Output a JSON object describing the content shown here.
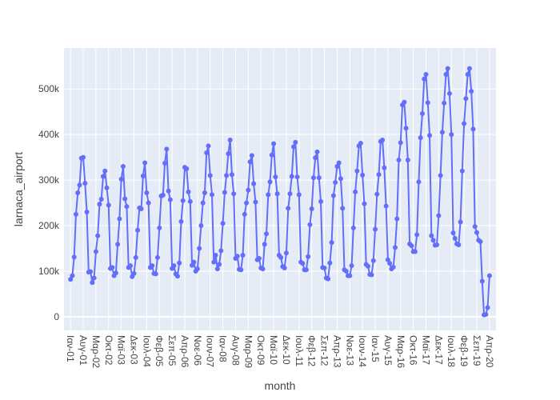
{
  "chart_data": {
    "type": "line",
    "mode": "lines+markers",
    "xlabel": "month",
    "ylabel": "larnaca_airport",
    "ylim": [
      -30000,
      590000
    ],
    "yticks": [
      0,
      100000,
      200000,
      300000,
      400000,
      500000
    ],
    "ytick_labels": [
      "0",
      "100k",
      "200k",
      "300k",
      "400k",
      "500k"
    ],
    "xtick_labels": [
      "Ιαν-01",
      "Αυγ-01",
      "Μαρ-02",
      "Οκτ-02",
      "Μαϊ-03",
      "Δεκ-03",
      "Ιουλ-04",
      "Φεβ-05",
      "Σεπ-05",
      "Απρ-06",
      "Νοε-06",
      "Ιουν-07",
      "Ιαν-08",
      "Αυγ-08",
      "Μαρ-09",
      "Οκτ-09",
      "Μαϊ-10",
      "Δεκ-10",
      "Ιουλ-11",
      "Φεβ-12",
      "Σεπ-12",
      "Απρ-13",
      "Νοε-13",
      "Ιουν-14",
      "Ιαν-15",
      "Αυγ-15",
      "Μαρ-16",
      "Οκτ-16",
      "Μαϊ-17",
      "Δεκ-17",
      "Ιουλ-18",
      "Φεβ-19",
      "Σεπ-19",
      "Απρ-20"
    ],
    "xtick_step_months": 7,
    "grid": true,
    "line_color": "#636efa",
    "plot_bg": "#e5ecf6",
    "series": [
      {
        "start": "2001-01",
        "values": [
          82000,
          90000,
          131000,
          225000,
          272000,
          289000,
          348000,
          350000,
          293000,
          230000,
          98000,
          99000,
          75000,
          85000,
          143000,
          178000,
          247000,
          258000,
          308000,
          320000,
          283000,
          245000,
          106000,
          108000,
          90000,
          96000,
          159000,
          215000,
          302000,
          330000,
          259000,
          242000,
          108000,
          112000,
          88000,
          95000,
          130000,
          190000,
          239000,
          237000,
          309000,
          338000,
          272000,
          250000,
          108000,
          112000,
          95000,
          94000,
          130000,
          195000,
          265000,
          267000,
          337000,
          368000,
          276000,
          257000,
          106000,
          112000,
          94000,
          89000,
          118000,
          209000,
          255000,
          328000,
          325000,
          274000,
          253000,
          113000,
          120000,
          100000,
          105000,
          150000,
          200000,
          250000,
          272000,
          360000,
          375000,
          310000,
          268000,
          120000,
          135000,
          105000,
          115000,
          145000,
          205000,
          273000,
          310000,
          358000,
          388000,
          312000,
          270000,
          128000,
          133000,
          104000,
          103000,
          135000,
          225000,
          250000,
          278000,
          340000,
          354000,
          292000,
          252000,
          125000,
          128000,
          107000,
          105000,
          159000,
          182000,
          268000,
          296000,
          355000,
          380000,
          307000,
          270000,
          135000,
          130000,
          110000,
          107000,
          140000,
          238000,
          270000,
          308000,
          373000,
          383000,
          307000,
          268000,
          120000,
          117000,
          103000,
          103000,
          132000,
          202000,
          237000,
          305000,
          349000,
          362000,
          305000,
          253000,
          108000,
          107000,
          85000,
          83000,
          118000,
          163000,
          266000,
          295000,
          330000,
          338000,
          303000,
          238000,
          103000,
          100000,
          90000,
          90000,
          112000,
          195000,
          274000,
          320000,
          375000,
          381000,
          311000,
          248000,
          115000,
          111000,
          93000,
          92000,
          123000,
          192000,
          269000,
          312000,
          385000,
          388000,
          327000,
          243000,
          125000,
          117000,
          105000,
          109000,
          152000,
          215000,
          344000,
          382000,
          465000,
          471000,
          414000,
          344000,
          160000,
          156000,
          143000,
          143000,
          180000,
          296000,
          393000,
          446000,
          522000,
          532000,
          470000,
          398000,
          178000,
          168000,
          157000,
          158000,
          222000,
          310000,
          405000,
          469000,
          532000,
          545000,
          490000,
          400000,
          184000,
          172000,
          160000,
          158000,
          208000,
          320000,
          424000,
          479000,
          532000,
          545000,
          495000,
          412000,
          198000,
          185000,
          168000,
          165000,
          78000,
          4000,
          5000,
          20000,
          90000
        ]
      }
    ]
  }
}
